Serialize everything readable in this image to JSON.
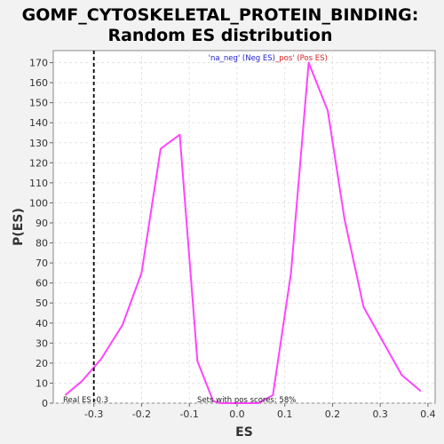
{
  "chart_data": {
    "type": "line",
    "title_line1": "GOMF_CYTOSKELETAL_PROTEIN_BINDING:",
    "title_line2": "Random ES distribution",
    "xlabel": "ES",
    "ylabel": "P(ES)",
    "xlim": [
      -0.385,
      0.415
    ],
    "ylim": [
      0,
      176
    ],
    "x_ticks": [
      -0.3,
      -0.2,
      -0.1,
      0.0,
      0.1,
      0.2,
      0.3,
      0.4
    ],
    "x_tick_labels": [
      "-0.3",
      "-0.2",
      "-0.1",
      "0.0",
      "0.1",
      "0.2",
      "0.3",
      "0.4"
    ],
    "y_ticks": [
      0,
      10,
      20,
      30,
      40,
      50,
      60,
      70,
      80,
      90,
      100,
      110,
      120,
      130,
      140,
      150,
      160,
      170
    ],
    "grid": true,
    "series": [
      {
        "color": "#ff44ff",
        "x": [
          -0.36,
          -0.325,
          -0.285,
          -0.24,
          -0.2,
          -0.16,
          -0.12,
          -0.083,
          -0.05,
          -0.035,
          0.045,
          0.075,
          0.113,
          0.15,
          0.19,
          0.225,
          0.265,
          0.305,
          0.345,
          0.385
        ],
        "y": [
          4,
          11,
          22,
          39,
          65,
          127,
          134,
          21,
          1,
          0,
          0,
          4,
          65,
          170,
          146,
          92,
          48,
          31,
          14,
          6
        ]
      }
    ],
    "real_es": -0.3,
    "real_es_label": "Real ES -0.3",
    "pos_scores_label": "Sets with pos scores: 58%",
    "legend": {
      "placement": "top-center",
      "neg_part": "'na_neg' (Neg ES)",
      "pos_part": "_pos' (Pos ES)",
      "neg_color": "#2222cc",
      "pos_color": "#dd2222"
    }
  }
}
